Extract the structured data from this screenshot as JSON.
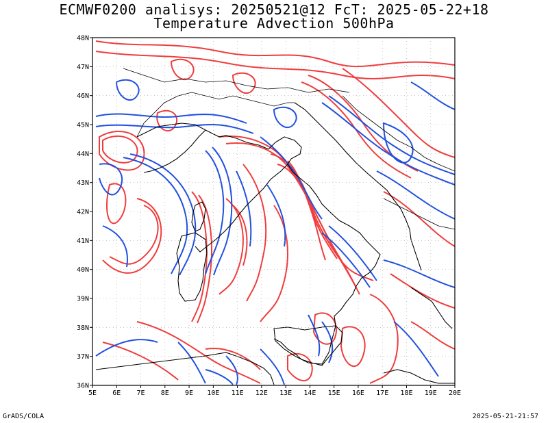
{
  "title": {
    "line1": "ECMWF0200 analisys: 20250521@12 FcT: 2025-05-22+18",
    "line2": "Temperature Advection 500hPa"
  },
  "footer": {
    "left": "GrADS/COLA",
    "right": "2025-05-21-21:57"
  },
  "axes": {
    "lon_labels": [
      "5E",
      "6E",
      "7E",
      "8E",
      "9E",
      "10E",
      "11E",
      "12E",
      "13E",
      "14E",
      "15E",
      "16E",
      "17E",
      "18E",
      "19E",
      "20E"
    ],
    "lat_labels": [
      "48N",
      "47N",
      "46N",
      "45N",
      "44N",
      "43N",
      "42N",
      "41N",
      "40N",
      "39N",
      "38N",
      "37N",
      "36N"
    ],
    "lon_range": [
      5,
      20
    ],
    "lat_range": [
      36,
      48
    ]
  },
  "colors": {
    "warm": "#f03c3c",
    "cold": "#2050e0",
    "coast": "#000000",
    "grid": "#a0a0a0"
  }
}
